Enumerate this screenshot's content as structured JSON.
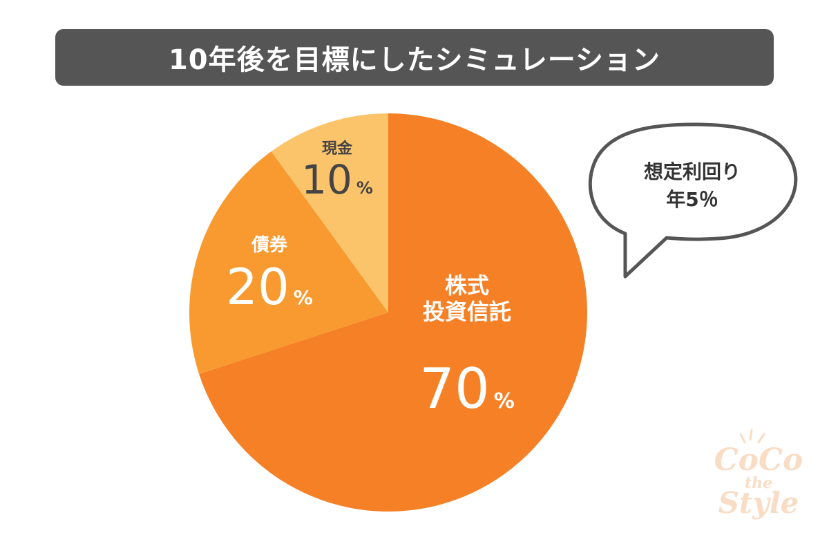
{
  "title": "10年後を目標にしたシミュレーション",
  "chart_data": {
    "type": "pie",
    "title": "10年後を目標にしたシミュレーション",
    "unit": "%",
    "slices": [
      {
        "label_lines": [
          "株式",
          "投資信託"
        ],
        "value": 70,
        "value_text": "70",
        "color": "#f58025"
      },
      {
        "label_lines": [
          "債券"
        ],
        "value": 20,
        "value_text": "20",
        "color": "#f99a30"
      },
      {
        "label_lines": [
          "現金"
        ],
        "value": 10,
        "value_text": "10",
        "color": "#fcc46a"
      }
    ]
  },
  "callout": {
    "line1": "想定利回り",
    "line2": "年5％"
  },
  "logo": {
    "line1": "CoCo",
    "line2": "the",
    "line3": "Style"
  }
}
